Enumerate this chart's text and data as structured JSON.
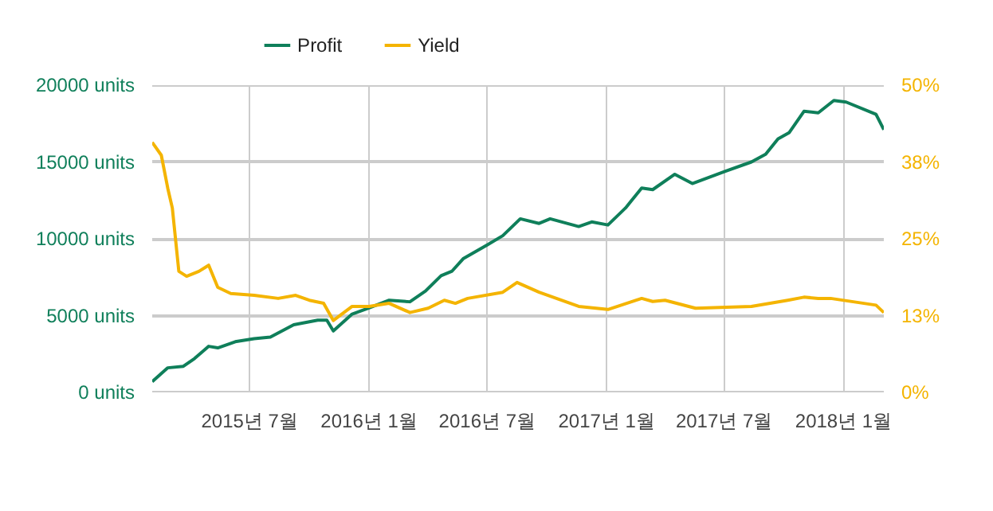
{
  "chart_data": {
    "type": "line",
    "x": [
      "2015-02-01",
      "2015-02-25",
      "2015-03-21",
      "2015-04-07",
      "2015-04-29",
      "2015-05-13",
      "2015-06-09",
      "2015-07-08",
      "2015-08-02",
      "2015-09-07",
      "2015-10-14",
      "2015-10-28",
      "2015-11-07",
      "2015-12-06",
      "2016-01-01",
      "2016-02-01",
      "2016-03-04",
      "2016-03-28",
      "2016-04-21",
      "2016-05-08",
      "2016-05-25",
      "2016-07-01",
      "2016-07-25",
      "2016-08-21",
      "2016-09-19",
      "2016-10-06",
      "2016-11-19",
      "2016-12-09",
      "2017-01-03",
      "2017-01-30",
      "2017-02-24",
      "2017-03-13",
      "2017-04-16",
      "2017-05-13",
      "2017-07-03",
      "2017-08-12",
      "2017-09-03",
      "2017-09-22",
      "2017-10-09",
      "2017-11-01",
      "2017-11-23",
      "2017-12-17",
      "2018-01-05",
      "2018-02-20",
      "2018-03-04"
    ],
    "series": [
      {
        "name": "Profit",
        "color": "#0f7f5a",
        "values": [
          700,
          1600,
          1700,
          2200,
          3000,
          2900,
          3300,
          3500,
          3600,
          4400,
          4700,
          4700,
          4000,
          5100,
          5500,
          6000,
          5900,
          6600,
          7600,
          7900,
          8700,
          9600,
          10200,
          11300,
          11000,
          11300,
          10800,
          11100,
          10900,
          12000,
          13300,
          13200,
          14200,
          13600,
          14400,
          15000,
          15500,
          16500,
          16900,
          18300,
          18200,
          19000,
          18900,
          18100,
          17100
        ]
      },
      {
        "name": "Yield",
        "color": "#f4b400",
        "axis": "y2",
        "x": [
          "2015-02-01",
          "2015-02-15",
          "2015-02-25",
          "2015-03-04",
          "2015-03-14",
          "2015-03-26",
          "2015-04-14",
          "2015-04-29",
          "2015-05-13",
          "2015-06-02",
          "2015-07-08",
          "2015-08-14",
          "2015-09-10",
          "2015-10-01",
          "2015-10-23",
          "2015-11-07",
          "2015-12-06",
          "2016-01-01",
          "2016-02-01",
          "2016-03-04",
          "2016-04-01",
          "2016-04-26",
          "2016-05-13",
          "2016-06-01",
          "2016-07-25",
          "2016-08-16",
          "2016-09-19",
          "2016-11-19",
          "2017-01-03",
          "2017-02-24",
          "2017-03-13",
          "2017-04-01",
          "2017-05-18",
          "2017-08-12",
          "2017-10-07",
          "2017-11-01",
          "2017-11-23",
          "2017-12-12",
          "2018-02-20",
          "2018-03-04"
        ],
        "values": [
          40.7,
          38.6,
          33.2,
          30,
          19.7,
          18.9,
          19.7,
          20.7,
          17.1,
          16.1,
          15.8,
          15.3,
          15.8,
          15.0,
          14.5,
          11.7,
          14.0,
          14.0,
          14.5,
          13.0,
          13.7,
          15.0,
          14.5,
          15.3,
          16.3,
          17.9,
          16.3,
          14.0,
          13.5,
          15.3,
          14.8,
          15.0,
          13.7,
          14.0,
          15.0,
          15.5,
          15.3,
          15.3,
          14.2,
          13.0
        ]
      }
    ],
    "xlim": [
      "2015-02-01",
      "2018-03-04"
    ],
    "xticks": [
      {
        "value": "2015-07-01",
        "label": "2015년 7월"
      },
      {
        "value": "2016-01-01",
        "label": "2016년 1월"
      },
      {
        "value": "2016-07-01",
        "label": "2016년 7월"
      },
      {
        "value": "2017-01-01",
        "label": "2017년 1월"
      },
      {
        "value": "2017-07-01",
        "label": "2017년 7월"
      },
      {
        "value": "2018-01-01",
        "label": "2018년 1월"
      }
    ],
    "ylim": [
      0,
      20000
    ],
    "yticks": [
      {
        "value": 0,
        "label": "0 units"
      },
      {
        "value": 5000,
        "label": "5000 units"
      },
      {
        "value": 10000,
        "label": "10000 units"
      },
      {
        "value": 15000,
        "label": "15000 units"
      },
      {
        "value": 20000,
        "label": "20000 units"
      }
    ],
    "y2lim": [
      0,
      50
    ],
    "y2ticks": [
      {
        "value": 0,
        "label": "0%"
      },
      {
        "value": 12.5,
        "label": "13%"
      },
      {
        "value": 25,
        "label": "25%"
      },
      {
        "value": 37.5,
        "label": "38%"
      },
      {
        "value": 50,
        "label": "50%"
      }
    ],
    "grid": true,
    "legend": "top left",
    "marker": "none",
    "line_style": "solid"
  }
}
